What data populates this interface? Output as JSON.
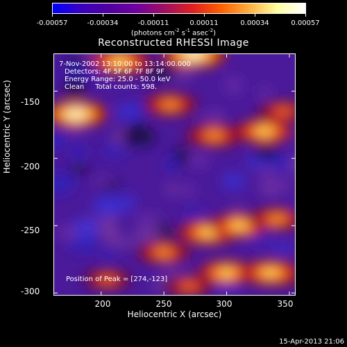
{
  "colorbar": {
    "ticks": [
      "-0.00057",
      "-0.00034",
      "-0.00011",
      "0.00011",
      "0.00034",
      "0.00057"
    ],
    "units_main": "(photons cm",
    "units_exp1": "-2",
    "units_mid": " s",
    "units_exp2": "-1",
    "units_mid2": " asec",
    "units_exp3": "-2",
    "units_end": ")"
  },
  "title": "Reconstructed RHESSI Image",
  "annotations": {
    "line1": "7-Nov-2002 13:10:00 to 13:14:00.000",
    "line2": "Detectors: 4F 5F 6F 7F 8F 9F",
    "line3": "Energy Range: 25.0 - 50.0 keV",
    "line4": "Clean     Total counts: 598.",
    "peak": "Position of Peak = [274,-123]"
  },
  "timestamp": "15-Apr-2013 21:06",
  "chart_data": {
    "type": "heatmap",
    "title": "Reconstructed RHESSI Image",
    "xlabel": "Heliocentric X (arcsec)",
    "ylabel": "Heliocentric Y (arcsec)",
    "xlim": [
      162,
      355
    ],
    "ylim": [
      -302,
      -122
    ],
    "xticks": [
      200,
      250,
      300,
      350
    ],
    "yticks": [
      -150,
      -200,
      -250,
      -300
    ],
    "color_range": [
      -0.00057,
      0.00057
    ],
    "colormap": [
      "#0000ff",
      "#3a00c0",
      "#5000a0",
      "#7000a0",
      "#a01060",
      "#e02020",
      "#ff6000",
      "#ffb040",
      "#ffffa0",
      "#ffffff"
    ],
    "bright_regions": [
      {
        "x": 274,
        "y": -123,
        "level": 1.0
      },
      {
        "x": 215,
        "y": -128,
        "level": 0.9
      },
      {
        "x": 180,
        "y": -167,
        "level": 0.95
      },
      {
        "x": 255,
        "y": -160,
        "level": 0.7
      },
      {
        "x": 290,
        "y": -183,
        "level": 0.75
      },
      {
        "x": 330,
        "y": -180,
        "level": 0.8
      },
      {
        "x": 345,
        "y": -165,
        "level": 0.6
      },
      {
        "x": 285,
        "y": -255,
        "level": 0.85
      },
      {
        "x": 310,
        "y": -250,
        "level": 0.8
      },
      {
        "x": 340,
        "y": -245,
        "level": 0.7
      },
      {
        "x": 250,
        "y": -270,
        "level": 0.65
      },
      {
        "x": 300,
        "y": -285,
        "level": 0.8
      },
      {
        "x": 335,
        "y": -285,
        "level": 0.85
      },
      {
        "x": 270,
        "y": -295,
        "level": 0.6
      },
      {
        "x": 205,
        "y": -290,
        "level": 0.5
      }
    ]
  },
  "colors": {
    "background": "#000000",
    "foreground": "#ffffff"
  }
}
